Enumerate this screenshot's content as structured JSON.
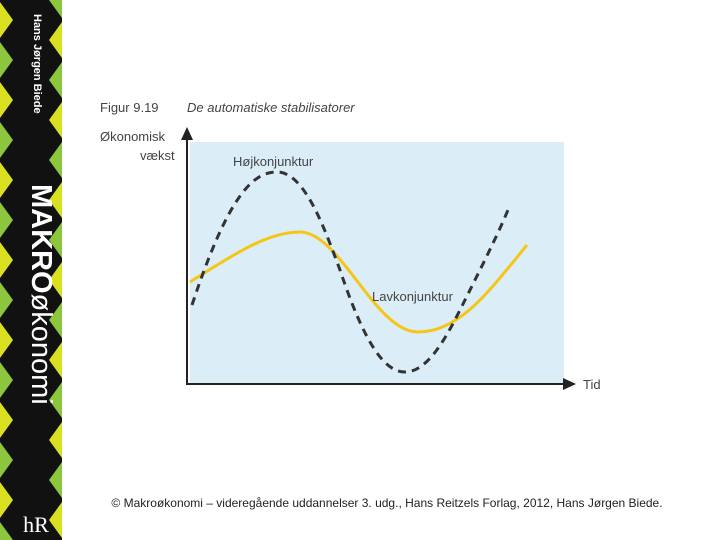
{
  "sidebar": {
    "author": "Hans Jørgen Biede",
    "title_bold": "MAKRO",
    "title_rest": "økonomi",
    "logo": "hR"
  },
  "figure": {
    "number": "Figur 9.19",
    "title": "De automatiske stabilisatorer",
    "y_axis_label": [
      "Økonomisk",
      "vækst"
    ],
    "x_axis_label": "Tid",
    "labels": [
      "Højkonjunktur",
      "Lavkonjunktur"
    ]
  },
  "caption": "© Makroøkonomi – videregående uddannelser 3. udg., Hans Reitzels Forlag, 2012, Hans Jørgen Biede."
}
